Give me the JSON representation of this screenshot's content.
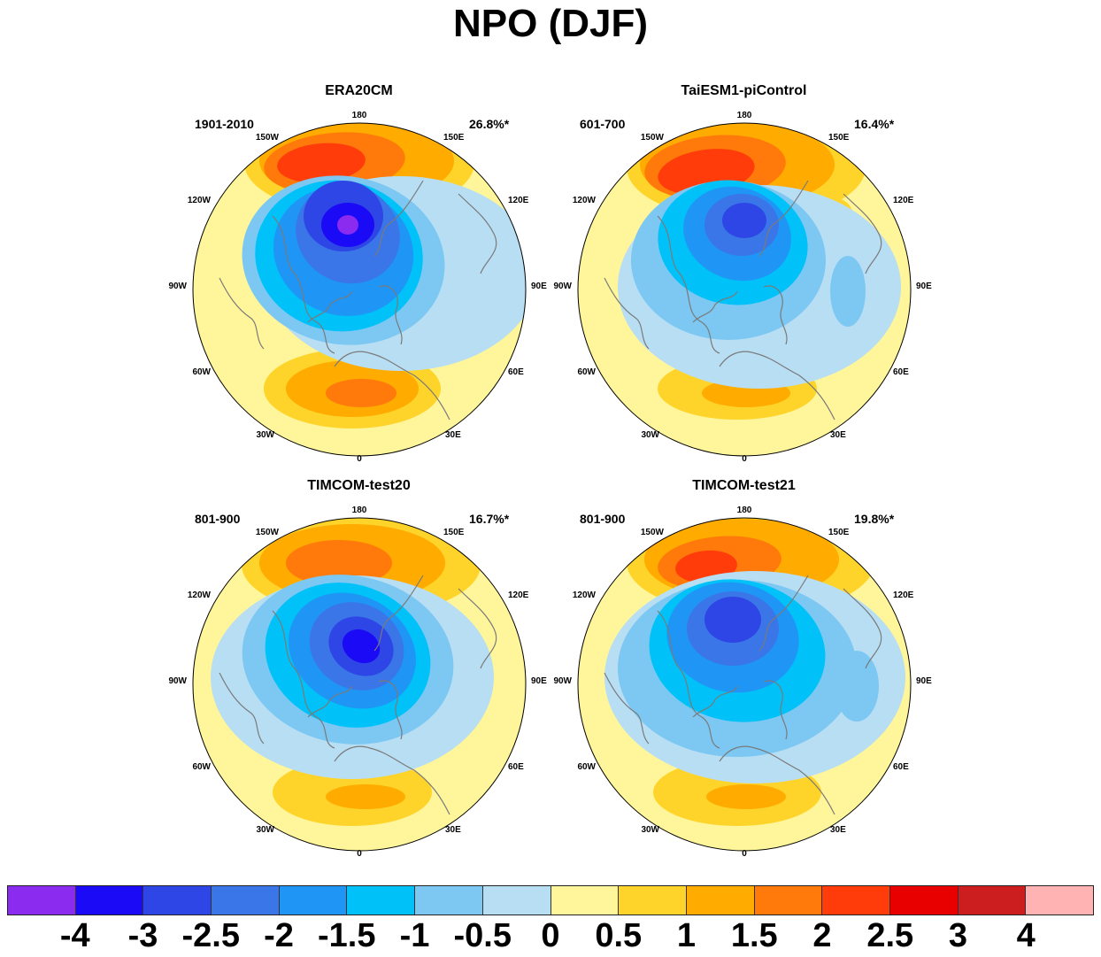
{
  "title": "NPO (DJF)",
  "colors": {
    "land_outline": "#7a7a7a",
    "palette": [
      "#8c2bf0",
      "#1a0af5",
      "#2e46e6",
      "#3a76e8",
      "#1f96f6",
      "#00c2f8",
      "#7cc8f2",
      "#b8def4",
      "#fff59a",
      "#ffd42a",
      "#ffab00",
      "#ff7a0a",
      "#ff3c0a",
      "#e80000",
      "#cc1e1e",
      "#ffb3b3"
    ]
  },
  "colorbar": {
    "labels": [
      "-4",
      "-3",
      "-2.5",
      "-2",
      "-1.5",
      "-1",
      "-0.5",
      "0",
      "0.5",
      "1",
      "1.5",
      "2",
      "2.5",
      "3",
      "4"
    ]
  },
  "lon_labels": {
    "top": "180",
    "bottom": "0",
    "left": [
      "150W",
      "120W",
      "90W",
      "60W",
      "30W"
    ],
    "right": [
      "150E",
      "120E",
      "90E",
      "60E",
      "30E"
    ]
  },
  "panels": [
    {
      "title": "ERA20CM",
      "period": "1901-2010",
      "variance": "26.8%*"
    },
    {
      "title": "TaiESM1-piControl",
      "period": "601-700",
      "variance": "16.4%*"
    },
    {
      "title": "TIMCOM-test20",
      "period": "801-900",
      "variance": "16.7%*"
    },
    {
      "title": "TIMCOM-test21",
      "period": "801-900",
      "variance": "19.8%*"
    }
  ]
}
